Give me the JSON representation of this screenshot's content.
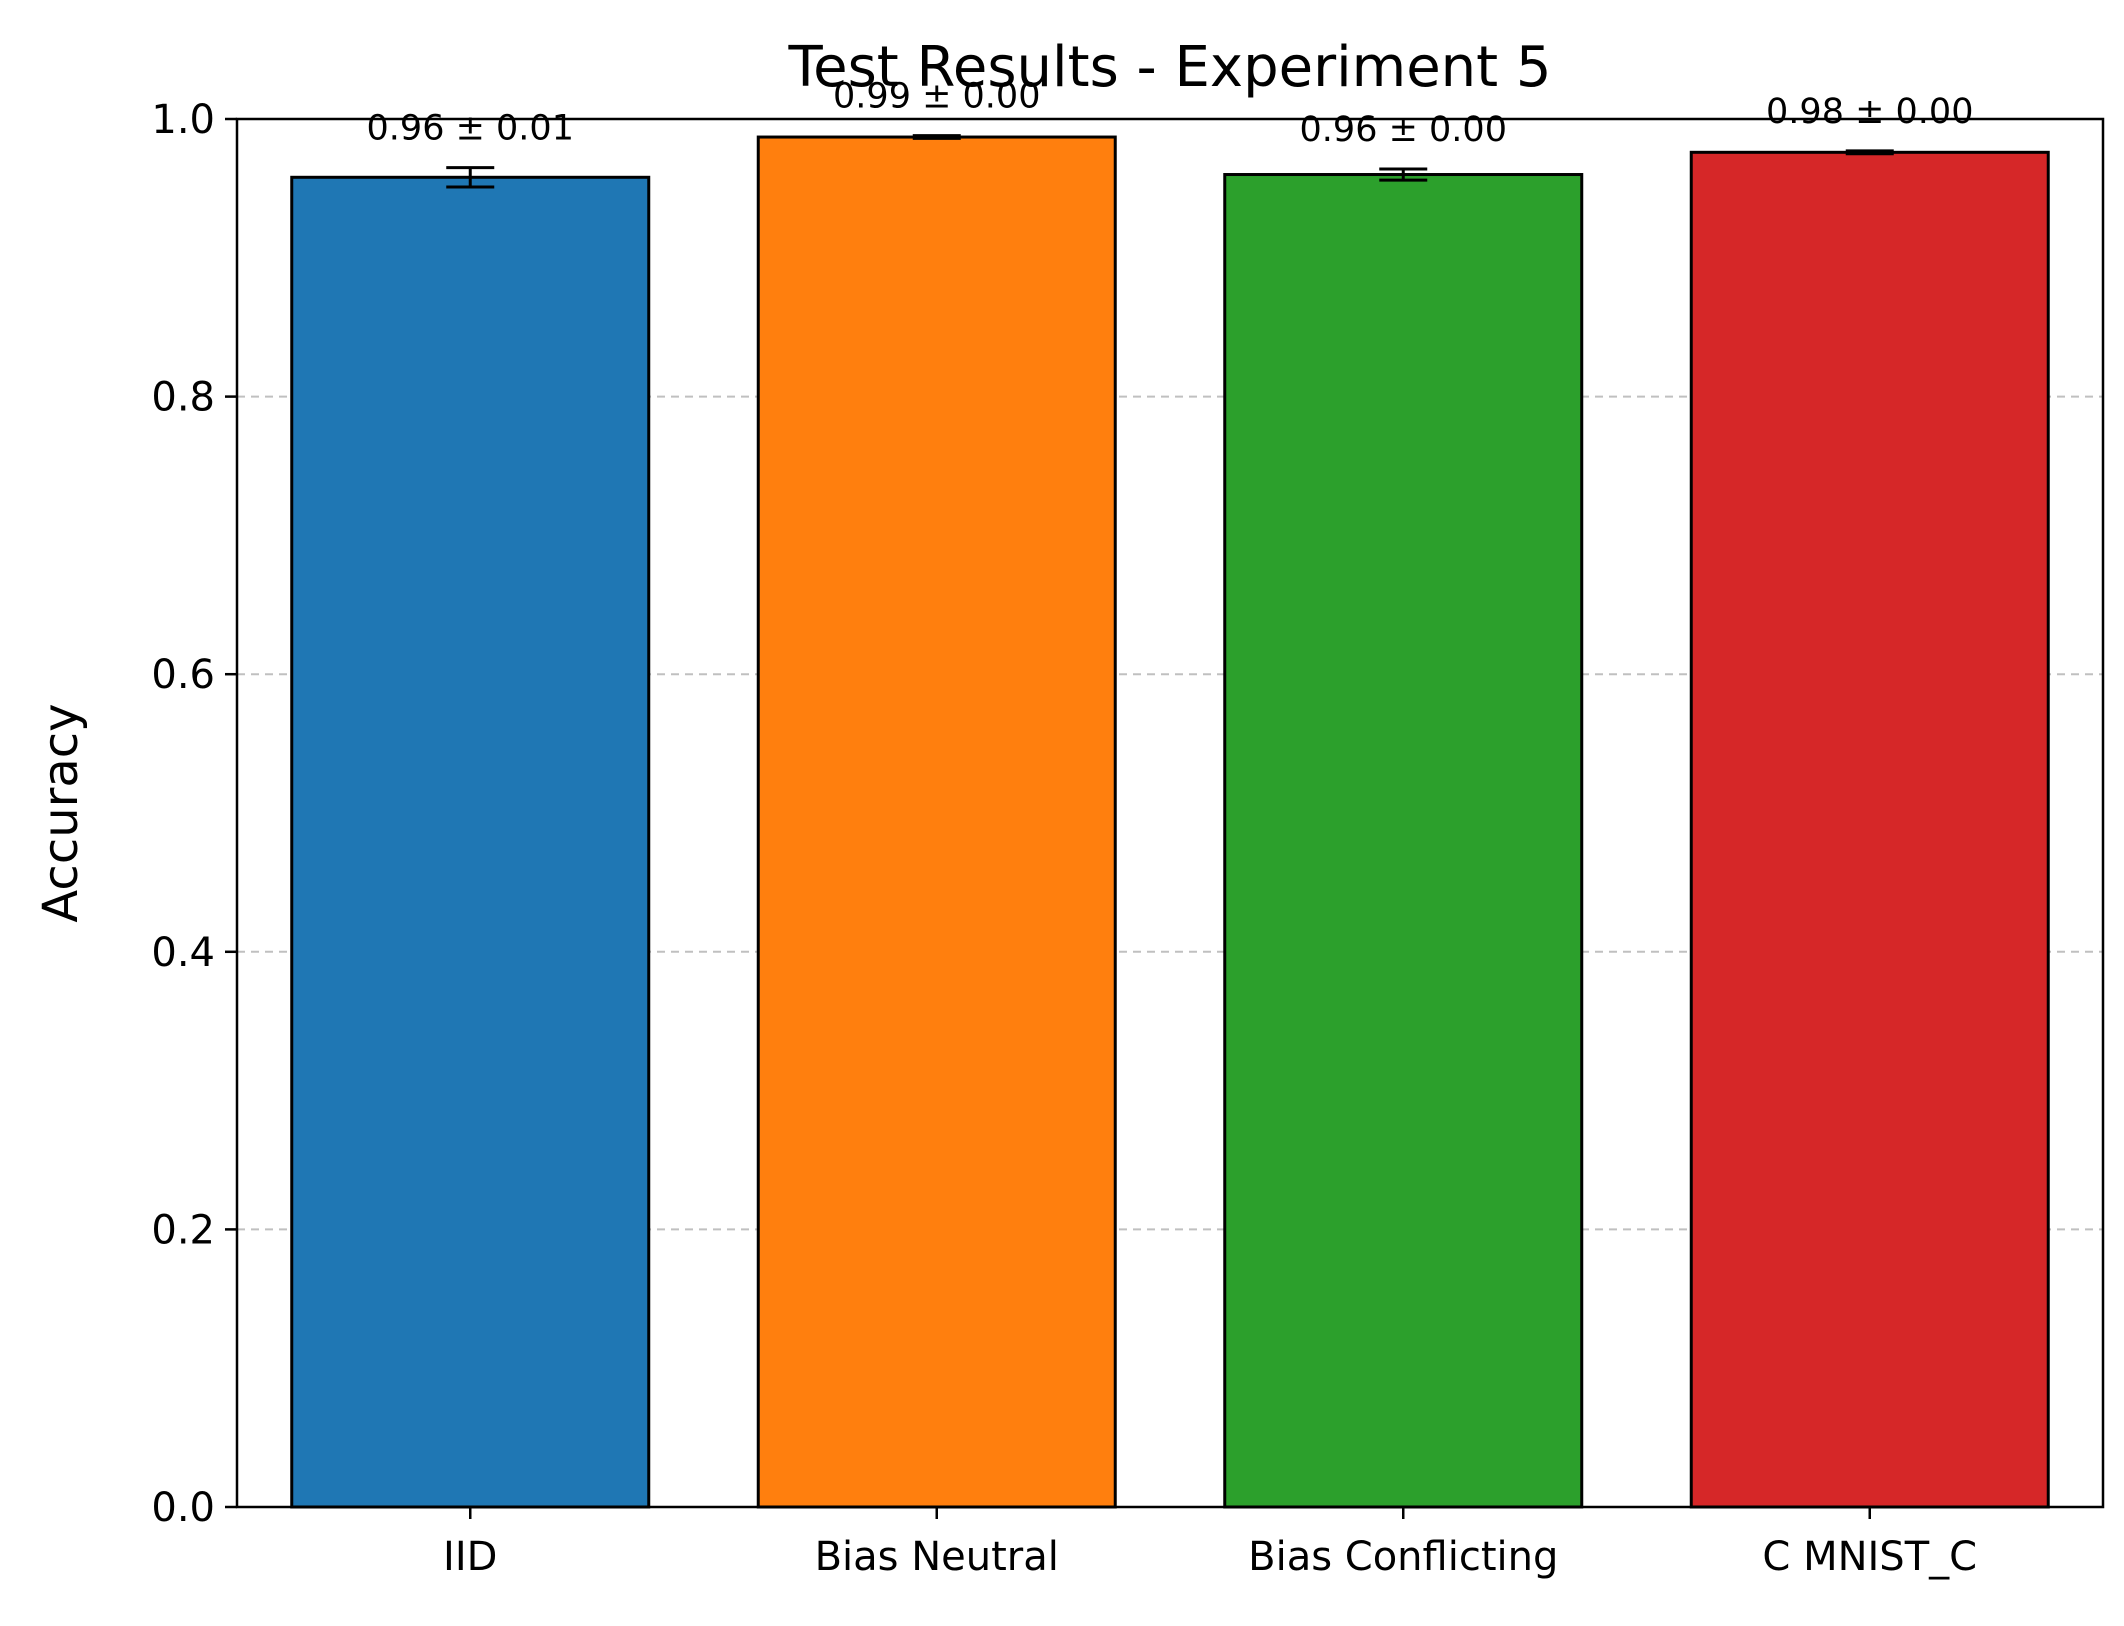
{
  "chart_data": {
    "type": "bar",
    "title": "Test Results - Experiment 5",
    "xlabel": "",
    "ylabel": "Accuracy",
    "ylim": [
      0,
      1.0
    ],
    "yticks": [
      "0.0",
      "0.2",
      "0.4",
      "0.6",
      "0.8",
      "1.0"
    ],
    "grid": "y-dashed",
    "categories": [
      "IID",
      "Bias Neutral",
      "Bias Conflicting",
      "C MNIST_C"
    ],
    "values": [
      0.958,
      0.987,
      0.96,
      0.976
    ],
    "errors": [
      0.007,
      0.001,
      0.004,
      0.001
    ],
    "data_labels": [
      "0.96 ± 0.01",
      "0.99 ± 0.00",
      "0.96 ± 0.00",
      "0.98 ± 0.00"
    ],
    "colors": [
      "#1f77b4",
      "#ff7f0e",
      "#2ca02c",
      "#d62728"
    ]
  }
}
